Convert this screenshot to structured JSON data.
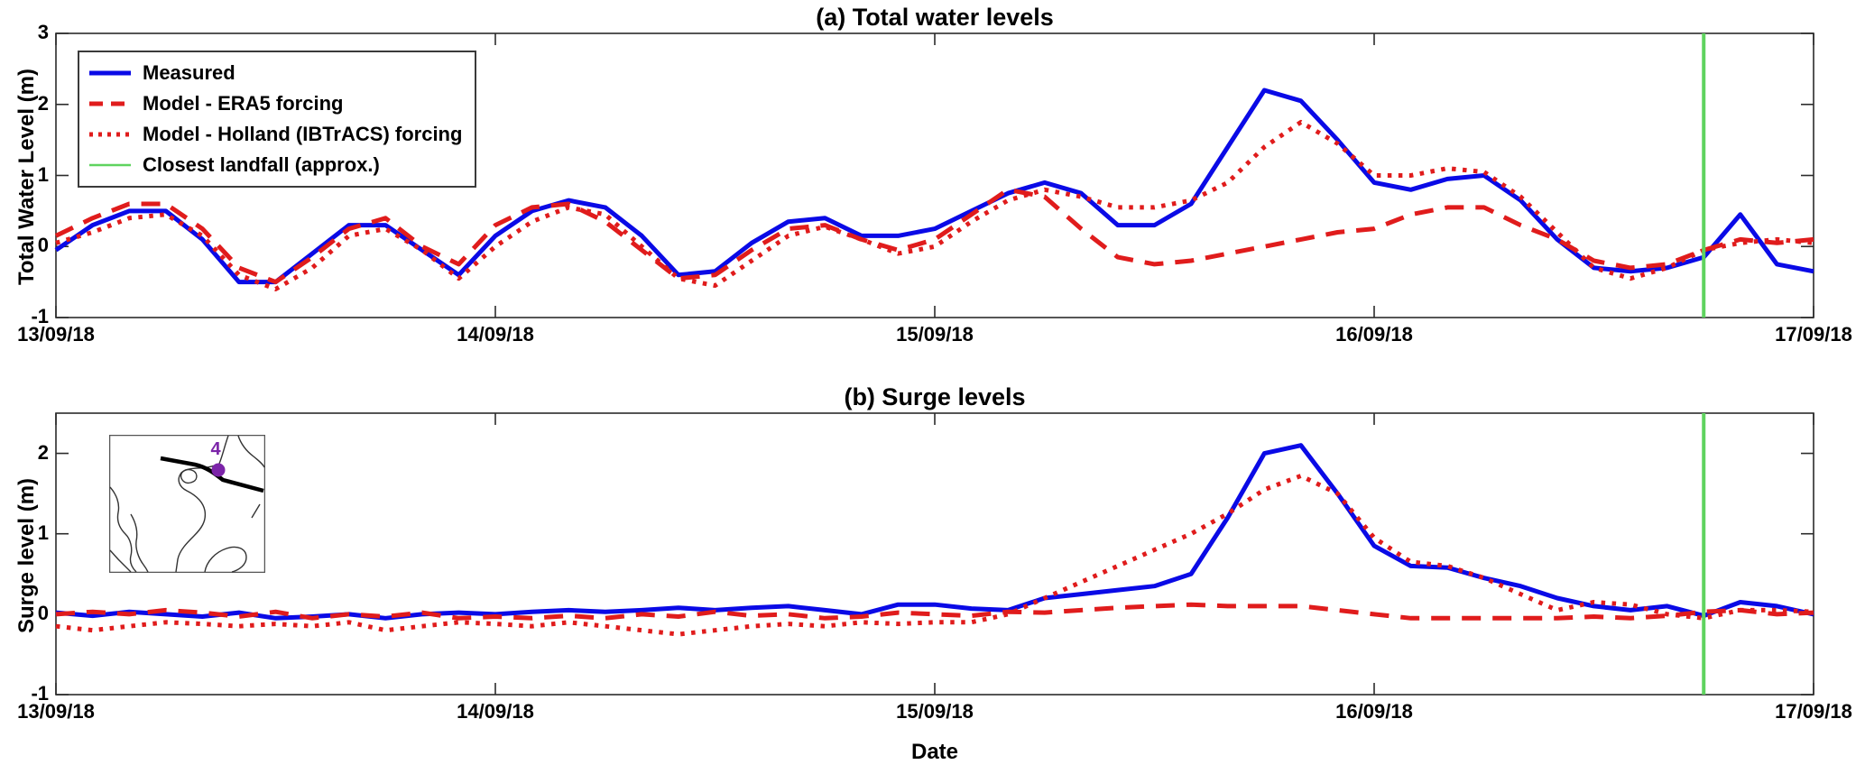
{
  "figure": {
    "type": "matlab-style time-series figure, two stacked panels",
    "axis_color": "#2b2b2b",
    "background": "#ffffff"
  },
  "legend": {
    "position": "top-left of panel (a)"
  },
  "inset": {
    "description": "location map of South China Sea with storm track and station",
    "station_label": "4",
    "marker_color": "#7b24a8",
    "track_color": "#000000",
    "coast_color": "#333333"
  },
  "chart_data": [
    {
      "type": "line",
      "title": "(a) Total water levels",
      "ylabel": "Total Water Level (m)",
      "xlabel": "",
      "x_ticklabels": [
        "13/09/18",
        "14/09/18",
        "15/09/18",
        "16/09/18",
        "17/09/18"
      ],
      "x_range_hours": [
        0,
        96
      ],
      "step_hours": 2,
      "ylim": [
        -1,
        3
      ],
      "yticks": [
        -1,
        0,
        1,
        2,
        3
      ],
      "grid": false,
      "legend_position": "top-left inside",
      "series": [
        {
          "name": "Measured",
          "color": "#0a0ae6",
          "line_style": "solid",
          "values": [
            -0.05,
            0.3,
            0.5,
            0.5,
            0.1,
            -0.5,
            -0.5,
            -0.1,
            0.3,
            0.3,
            -0.05,
            -0.4,
            0.15,
            0.5,
            0.65,
            0.55,
            0.15,
            -0.4,
            -0.35,
            0.05,
            0.35,
            0.4,
            0.15,
            0.15,
            0.25,
            0.5,
            0.75,
            0.9,
            0.75,
            0.3,
            0.3,
            0.6,
            1.4,
            2.2,
            2.05,
            1.5,
            0.9,
            0.8,
            0.95,
            1.0,
            0.65,
            0.1,
            -0.3,
            -0.35,
            -0.3,
            -0.15,
            0.45,
            -0.25,
            -0.35
          ]
        },
        {
          "name": "Model - ERA5 forcing",
          "color": "#e01c1c",
          "line_style": "dashed",
          "values": [
            0.15,
            0.4,
            0.6,
            0.6,
            0.25,
            -0.3,
            -0.5,
            -0.15,
            0.25,
            0.4,
            0.0,
            -0.25,
            0.3,
            0.55,
            0.6,
            0.35,
            -0.05,
            -0.45,
            -0.4,
            -0.05,
            0.25,
            0.3,
            0.1,
            -0.05,
            0.1,
            0.45,
            0.8,
            0.7,
            0.25,
            -0.15,
            -0.25,
            -0.2,
            -0.1,
            0.0,
            0.1,
            0.2,
            0.25,
            0.45,
            0.55,
            0.55,
            0.3,
            0.1,
            -0.2,
            -0.3,
            -0.25,
            -0.05,
            0.1,
            0.05,
            0.1
          ]
        },
        {
          "name": "Model - Holland (IBTrACS) forcing",
          "color": "#e01c1c",
          "line_style": "dotted",
          "values": [
            0.05,
            0.2,
            0.4,
            0.45,
            0.15,
            -0.4,
            -0.6,
            -0.3,
            0.15,
            0.25,
            -0.05,
            -0.45,
            0.0,
            0.35,
            0.55,
            0.45,
            0.0,
            -0.45,
            -0.55,
            -0.2,
            0.15,
            0.28,
            0.1,
            -0.1,
            0.0,
            0.35,
            0.65,
            0.8,
            0.7,
            0.55,
            0.55,
            0.65,
            0.9,
            1.4,
            1.75,
            1.45,
            1.0,
            1.0,
            1.1,
            1.05,
            0.7,
            0.2,
            -0.3,
            -0.45,
            -0.3,
            -0.05,
            0.05,
            0.1,
            0.05
          ]
        }
      ],
      "landfall": {
        "label": "Closest landfall (approx.)",
        "color": "#5fd35f",
        "hour": 90
      }
    },
    {
      "type": "line",
      "title": "(b) Surge levels",
      "ylabel": "Surge level (m)",
      "xlabel": "Date",
      "x_ticklabels": [
        "13/09/18",
        "14/09/18",
        "15/09/18",
        "16/09/18",
        "17/09/18"
      ],
      "x_range_hours": [
        0,
        96
      ],
      "step_hours": 2,
      "ylim": [
        -1,
        2.5
      ],
      "yticks": [
        -1,
        0,
        1,
        2
      ],
      "grid": false,
      "series": [
        {
          "name": "Measured",
          "color": "#0a0ae6",
          "line_style": "solid",
          "values": [
            0.02,
            -0.02,
            0.03,
            0.0,
            -0.03,
            0.02,
            -0.05,
            -0.03,
            0.0,
            -0.05,
            0.0,
            0.02,
            0.0,
            0.03,
            0.05,
            0.03,
            0.05,
            0.08,
            0.05,
            0.08,
            0.1,
            0.05,
            0.0,
            0.12,
            0.12,
            0.07,
            0.05,
            0.2,
            0.25,
            0.3,
            0.35,
            0.5,
            1.2,
            2.0,
            2.1,
            1.5,
            0.85,
            0.6,
            0.58,
            0.45,
            0.35,
            0.2,
            0.1,
            0.05,
            0.1,
            -0.02,
            0.15,
            0.1,
            0.0
          ]
        },
        {
          "name": "Model - ERA5 forcing",
          "color": "#e01c1c",
          "line_style": "dashed",
          "values": [
            0.0,
            0.03,
            0.0,
            0.05,
            0.02,
            -0.03,
            0.03,
            -0.05,
            0.0,
            -0.03,
            0.02,
            -0.05,
            -0.03,
            -0.05,
            -0.02,
            -0.05,
            0.0,
            -0.03,
            0.03,
            -0.02,
            0.0,
            -0.05,
            -0.03,
            0.02,
            0.0,
            -0.02,
            0.03,
            0.02,
            0.05,
            0.08,
            0.1,
            0.12,
            0.1,
            0.1,
            0.1,
            0.05,
            0.0,
            -0.05,
            -0.05,
            -0.05,
            -0.05,
            -0.05,
            -0.03,
            -0.05,
            -0.02,
            0.03,
            0.05,
            0.0,
            0.02
          ]
        },
        {
          "name": "Model - Holland (IBTrACS) forcing",
          "color": "#e01c1c",
          "line_style": "dotted",
          "values": [
            -0.15,
            -0.2,
            -0.15,
            -0.1,
            -0.12,
            -0.15,
            -0.12,
            -0.15,
            -0.1,
            -0.2,
            -0.15,
            -0.1,
            -0.12,
            -0.15,
            -0.1,
            -0.15,
            -0.2,
            -0.25,
            -0.2,
            -0.15,
            -0.12,
            -0.15,
            -0.1,
            -0.12,
            -0.1,
            -0.1,
            0.0,
            0.2,
            0.4,
            0.6,
            0.8,
            1.0,
            1.25,
            1.55,
            1.72,
            1.5,
            0.95,
            0.65,
            0.6,
            0.45,
            0.25,
            0.05,
            0.15,
            0.12,
            0.0,
            -0.05,
            0.05,
            0.05,
            0.03
          ]
        }
      ],
      "landfall": {
        "label": "Closest landfall (approx.)",
        "color": "#5fd35f",
        "hour": 90
      }
    }
  ]
}
